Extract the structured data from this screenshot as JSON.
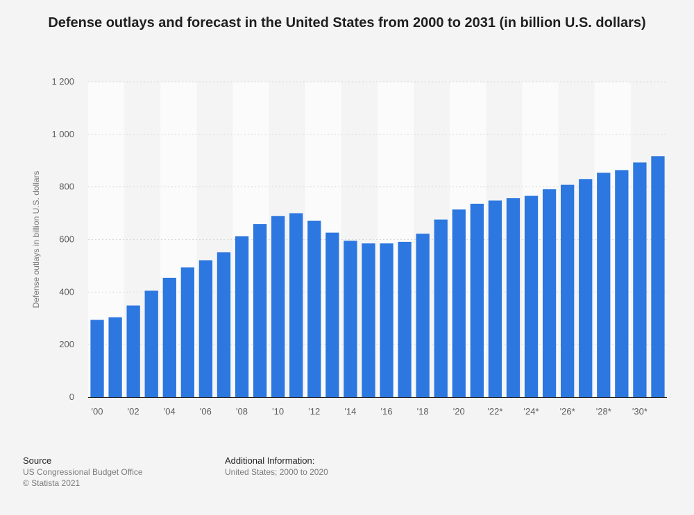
{
  "chart_data": {
    "type": "bar",
    "title": "Defense outlays and forecast in the United States from 2000 to 2031 (in billion U.S. dollars)",
    "ylabel": "Defense outlays in billion U.S. dollars",
    "xlabel": "",
    "ylim": [
      0,
      1200
    ],
    "yticks": [
      0,
      200,
      400,
      600,
      800,
      1000,
      1200
    ],
    "ytick_labels": [
      "0",
      "200",
      "400",
      "600",
      "800",
      "1 000",
      "1 200"
    ],
    "xtick_labels": [
      "'00",
      "'02",
      "'04",
      "'06",
      "'08",
      "'10",
      "'12",
      "'14",
      "'16",
      "'18",
      "'20",
      "'22*",
      "'24*",
      "'26*",
      "'28*",
      "'30*"
    ],
    "categories": [
      "'00",
      "'01",
      "'02",
      "'03",
      "'04",
      "'05",
      "'06",
      "'07",
      "'08",
      "'09",
      "'10",
      "'11",
      "'12",
      "'13",
      "'14",
      "'15",
      "'16",
      "'17",
      "'18",
      "'19",
      "'20",
      "'21*",
      "'22*",
      "'23*",
      "'24*",
      "'25*",
      "'26*",
      "'27*",
      "'28*",
      "'29*",
      "'30*",
      "'31*"
    ],
    "values": [
      294,
      304,
      349,
      405,
      454,
      494,
      521,
      551,
      612,
      659,
      689,
      700,
      671,
      626,
      595,
      585,
      585,
      591,
      622,
      676,
      714,
      736,
      748,
      757,
      766,
      791,
      808,
      830,
      854,
      864,
      893,
      917
    ],
    "bar_color": "#2c77e0",
    "grid": true
  },
  "footer": {
    "source_heading": "Source",
    "source_line1": "US Congressional Budget Office",
    "source_line2": "© Statista 2021",
    "info_heading": "Additional Information:",
    "info_line1": "United States; 2000 to 2020"
  }
}
